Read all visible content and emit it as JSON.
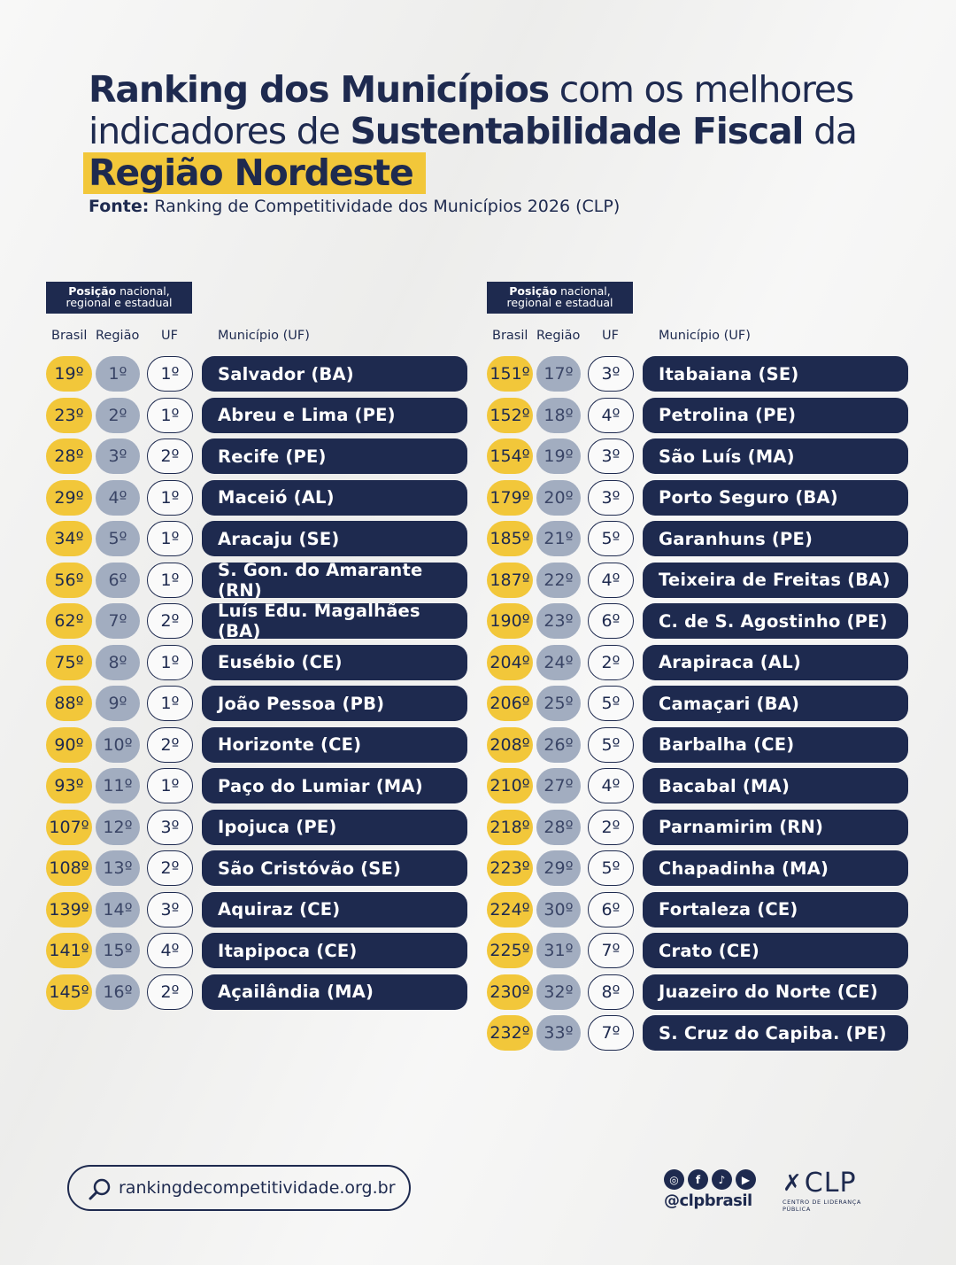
{
  "title": {
    "line1_bold": "Ranking dos Municípios",
    "line1_light": " com os melhores",
    "line2_light": "indicadores de ",
    "line2_bold": "Sustentabilidade Fiscal",
    "line2_light_end": " da",
    "line3_highlight": "Região Nordeste"
  },
  "source": {
    "label": "Fonte:",
    "text": " Ranking de Competitividade dos Municípios 2026 (CLP)"
  },
  "position_box": {
    "bold": "Posição",
    "rest": " nacional,",
    "line2": "regional e estadual"
  },
  "headers": {
    "brasil": "Brasil",
    "regiao": "Região",
    "uf": "UF",
    "municipio": "Município (UF)"
  },
  "left_rows": [
    {
      "br": "19º",
      "rg": "1º",
      "uf": "1º",
      "name": "Salvador (BA)"
    },
    {
      "br": "23º",
      "rg": "2º",
      "uf": "1º",
      "name": "Abreu e Lima (PE)"
    },
    {
      "br": "28º",
      "rg": "3º",
      "uf": "2º",
      "name": "Recife (PE)"
    },
    {
      "br": "29º",
      "rg": "4º",
      "uf": "1º",
      "name": "Maceió (AL)"
    },
    {
      "br": "34º",
      "rg": "5º",
      "uf": "1º",
      "name": "Aracaju (SE)"
    },
    {
      "br": "56º",
      "rg": "6º",
      "uf": "1º",
      "name": "S. Gon. do Amarante (RN)"
    },
    {
      "br": "62º",
      "rg": "7º",
      "uf": "2º",
      "name": "Luís Edu. Magalhães (BA)"
    },
    {
      "br": "75º",
      "rg": "8º",
      "uf": "1º",
      "name": "Eusébio (CE)"
    },
    {
      "br": "88º",
      "rg": "9º",
      "uf": "1º",
      "name": "João Pessoa (PB)"
    },
    {
      "br": "90º",
      "rg": "10º",
      "uf": "2º",
      "name": "Horizonte (CE)"
    },
    {
      "br": "93º",
      "rg": "11º",
      "uf": "1º",
      "name": "Paço do Lumiar (MA)"
    },
    {
      "br": "107º",
      "rg": "12º",
      "uf": "3º",
      "name": "Ipojuca (PE)"
    },
    {
      "br": "108º",
      "rg": "13º",
      "uf": "2º",
      "name": "São Cristóvão (SE)"
    },
    {
      "br": "139º",
      "rg": "14º",
      "uf": "3º",
      "name": "Aquiraz (CE)"
    },
    {
      "br": "141º",
      "rg": "15º",
      "uf": "4º",
      "name": "Itapipoca (CE)"
    },
    {
      "br": "145º",
      "rg": "16º",
      "uf": "2º",
      "name": "Açailândia (MA)"
    }
  ],
  "right_rows": [
    {
      "br": "151º",
      "rg": "17º",
      "uf": "3º",
      "name": "Itabaiana (SE)"
    },
    {
      "br": "152º",
      "rg": "18º",
      "uf": "4º",
      "name": "Petrolina (PE)"
    },
    {
      "br": "154º",
      "rg": "19º",
      "uf": "3º",
      "name": "São Luís (MA)"
    },
    {
      "br": "179º",
      "rg": "20º",
      "uf": "3º",
      "name": "Porto Seguro (BA)"
    },
    {
      "br": "185º",
      "rg": "21º",
      "uf": "5º",
      "name": "Garanhuns (PE)"
    },
    {
      "br": "187º",
      "rg": "22º",
      "uf": "4º",
      "name": "Teixeira de Freitas (BA)"
    },
    {
      "br": "190º",
      "rg": "23º",
      "uf": "6º",
      "name": "C. de S. Agostinho (PE)"
    },
    {
      "br": "204º",
      "rg": "24º",
      "uf": "2º",
      "name": "Arapiraca (AL)"
    },
    {
      "br": "206º",
      "rg": "25º",
      "uf": "5º",
      "name": "Camaçari (BA)"
    },
    {
      "br": "208º",
      "rg": "26º",
      "uf": "5º",
      "name": "Barbalha (CE)"
    },
    {
      "br": "210º",
      "rg": "27º",
      "uf": "4º",
      "name": "Bacabal (MA)"
    },
    {
      "br": "218º",
      "rg": "28º",
      "uf": "2º",
      "name": "Parnamirim (RN)"
    },
    {
      "br": "223º",
      "rg": "29º",
      "uf": "5º",
      "name": "Chapadinha (MA)"
    },
    {
      "br": "224º",
      "rg": "30º",
      "uf": "6º",
      "name": "Fortaleza (CE)"
    },
    {
      "br": "225º",
      "rg": "31º",
      "uf": "7º",
      "name": "Crato (CE)"
    },
    {
      "br": "230º",
      "rg": "32º",
      "uf": "8º",
      "name": "Juazeiro do Norte (CE)"
    },
    {
      "br": "232º",
      "rg": "33º",
      "uf": "7º",
      "name": "S. Cruz do Capiba. (PE)"
    }
  ],
  "footer": {
    "url": "rankingdecompetitividade.org.br",
    "handle": "@clpbrasil",
    "social_icons": [
      "instagram-icon",
      "facebook-icon",
      "tiktok-icon",
      "youtube-icon"
    ],
    "logo_text": "CLP",
    "logo_sub": "CENTRO DE LIDERANÇA PÚBLICA"
  },
  "colors": {
    "navy": "#1e2a4f",
    "yellow": "#f2c73a",
    "grey": "#a2adc0"
  }
}
